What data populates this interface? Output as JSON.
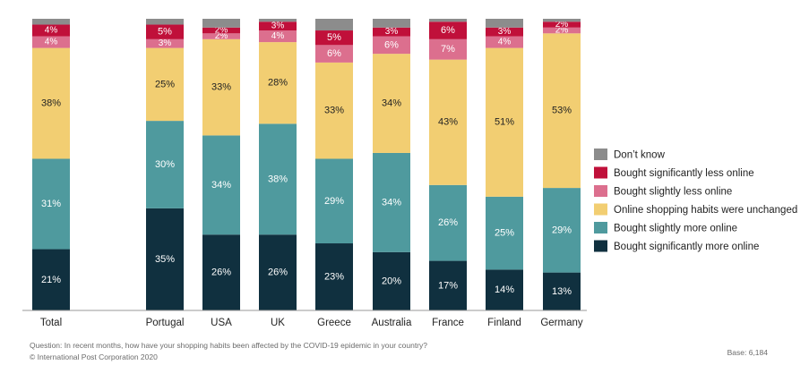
{
  "chart_data": {
    "type": "bar",
    "stacked": true,
    "normalized": true,
    "categories": [
      "Total",
      "Portugal",
      "USA",
      "UK",
      "Greece",
      "Australia",
      "France",
      "Finland",
      "Germany"
    ],
    "series": [
      {
        "name": "Bought significantly more online",
        "color": "#10303f",
        "label_color": "#ffffff",
        "values": [
          21,
          35,
          26,
          26,
          23,
          20,
          17,
          14,
          13
        ],
        "labels": [
          "21%",
          "35%",
          "26%",
          "26%",
          "23%",
          "20%",
          "17%",
          "14%",
          "13%"
        ]
      },
      {
        "name": "Bought slightly more online",
        "color": "#4f9a9e",
        "label_color": "#ffffff",
        "values": [
          31,
          30,
          34,
          38,
          29,
          34,
          26,
          25,
          29
        ],
        "labels": [
          "31%",
          "30%",
          "34%",
          "38%",
          "29%",
          "34%",
          "26%",
          "25%",
          "29%"
        ]
      },
      {
        "name": "Online shopping habits were unchanged",
        "color": "#f2ce72",
        "label_color": "#222222",
        "values": [
          38,
          25,
          33,
          28,
          33,
          34,
          43,
          51,
          53
        ],
        "labels": [
          "38%",
          "25%",
          "33%",
          "28%",
          "33%",
          "34%",
          "43%",
          "51%",
          "53%"
        ]
      },
      {
        "name": "Bought slightly less online",
        "color": "#dc6f8e",
        "label_color": "#ffffff",
        "values": [
          4,
          3,
          2,
          4,
          6,
          6,
          7,
          4,
          2
        ],
        "labels": [
          "4%",
          "3%",
          "2%",
          "4%",
          "6%",
          "6%",
          "7%",
          "4%",
          "2%"
        ]
      },
      {
        "name": "Bought significantly less online",
        "color": "#c0103a",
        "label_color": "#ffffff",
        "values": [
          4,
          5,
          2,
          3,
          5,
          3,
          6,
          3,
          2
        ],
        "labels": [
          "4%",
          "5%",
          "2%",
          "3%",
          "5%",
          "3%",
          "6%",
          "3%",
          "2%"
        ]
      },
      {
        "name": "Don't know",
        "color": "#8c8c8c",
        "label_color": "#ffffff",
        "values": [
          2,
          2,
          3,
          1,
          4,
          3,
          1,
          3,
          1
        ],
        "labels": [
          "",
          "",
          "",
          "",
          "",
          "",
          "",
          "",
          ""
        ]
      }
    ],
    "legend_order": [
      "Don’t know",
      "Bought significantly less online",
      "Bought slightly less online",
      "Online shopping habits were unchanged",
      "Bought slightly more online",
      "Bought significantly more online"
    ],
    "legend_position": "right",
    "ylim": [
      0,
      100
    ],
    "grid": false,
    "title": "",
    "xlabel": "",
    "ylabel": ""
  },
  "footnotes": {
    "question": "Question: In recent months, how have your shopping habits been affected by the COVID-19 epidemic in your country?",
    "copyright": "© International Post Corporation 2020",
    "base": "Base: 6,184"
  }
}
